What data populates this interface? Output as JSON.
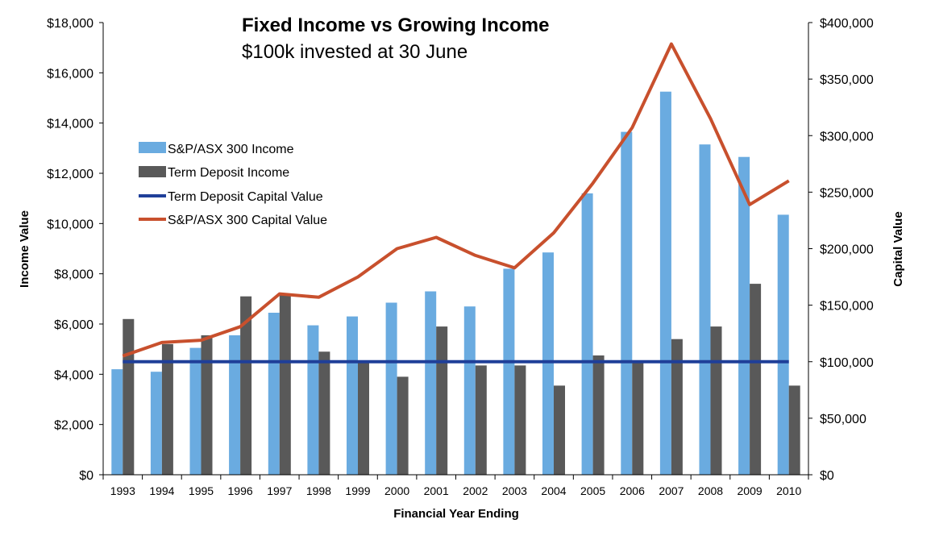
{
  "chart_data": {
    "type": "bar",
    "title": "Fixed Income vs Growing Income",
    "subtitle": "$100k invested at 30 June",
    "xlabel": "Financial Year Ending",
    "ylabel": "Income Value",
    "y2label": "Capital Value",
    "ylim": [
      0,
      18000
    ],
    "y2lim": [
      0,
      400000
    ],
    "yticks": [
      "$0",
      "$2,000",
      "$4,000",
      "$6,000",
      "$8,000",
      "$10,000",
      "$12,000",
      "$14,000",
      "$16,000",
      "$18,000"
    ],
    "y2ticks": [
      "$0",
      "$50,000",
      "$100,000",
      "$150,000",
      "$200,000",
      "$250,000",
      "$300,000",
      "$350,000",
      "$400,000"
    ],
    "categories": [
      "1993",
      "1994",
      "1995",
      "1996",
      "1997",
      "1998",
      "1999",
      "2000",
      "2001",
      "2002",
      "2003",
      "2004",
      "2005",
      "2006",
      "2007",
      "2008",
      "2009",
      "2010"
    ],
    "series": [
      {
        "name": "S&P/ASX 300 Income",
        "kind": "bar",
        "axis": "left",
        "color": "#6aabe0",
        "values": [
          4200,
          4100,
          5050,
          5550,
          6450,
          5950,
          6300,
          6850,
          7300,
          6700,
          8200,
          8850,
          11200,
          13650,
          15250,
          13150,
          12650,
          10350
        ]
      },
      {
        "name": "Term Deposit Income",
        "kind": "bar",
        "axis": "left",
        "color": "#595959",
        "values": [
          6200,
          5200,
          5550,
          7100,
          7150,
          4900,
          4450,
          3900,
          5900,
          4350,
          4350,
          3550,
          4750,
          4550,
          5400,
          5900,
          7600,
          3550
        ]
      },
      {
        "name": "Term Deposit Capital Value",
        "kind": "line",
        "axis": "right",
        "color": "#1f3f99",
        "values": [
          100000,
          100000,
          100000,
          100000,
          100000,
          100000,
          100000,
          100000,
          100000,
          100000,
          100000,
          100000,
          100000,
          100000,
          100000,
          100000,
          100000,
          100000
        ]
      },
      {
        "name": "S&P/ASX 300 Capital Value",
        "kind": "line",
        "axis": "right",
        "color": "#c8502d",
        "values": [
          105000,
          117000,
          119000,
          131000,
          160000,
          157000,
          175000,
          200000,
          210000,
          194000,
          183000,
          214000,
          258000,
          307000,
          381000,
          315000,
          239000,
          260000
        ]
      }
    ],
    "legend_position": "upper-left",
    "grid": false
  }
}
